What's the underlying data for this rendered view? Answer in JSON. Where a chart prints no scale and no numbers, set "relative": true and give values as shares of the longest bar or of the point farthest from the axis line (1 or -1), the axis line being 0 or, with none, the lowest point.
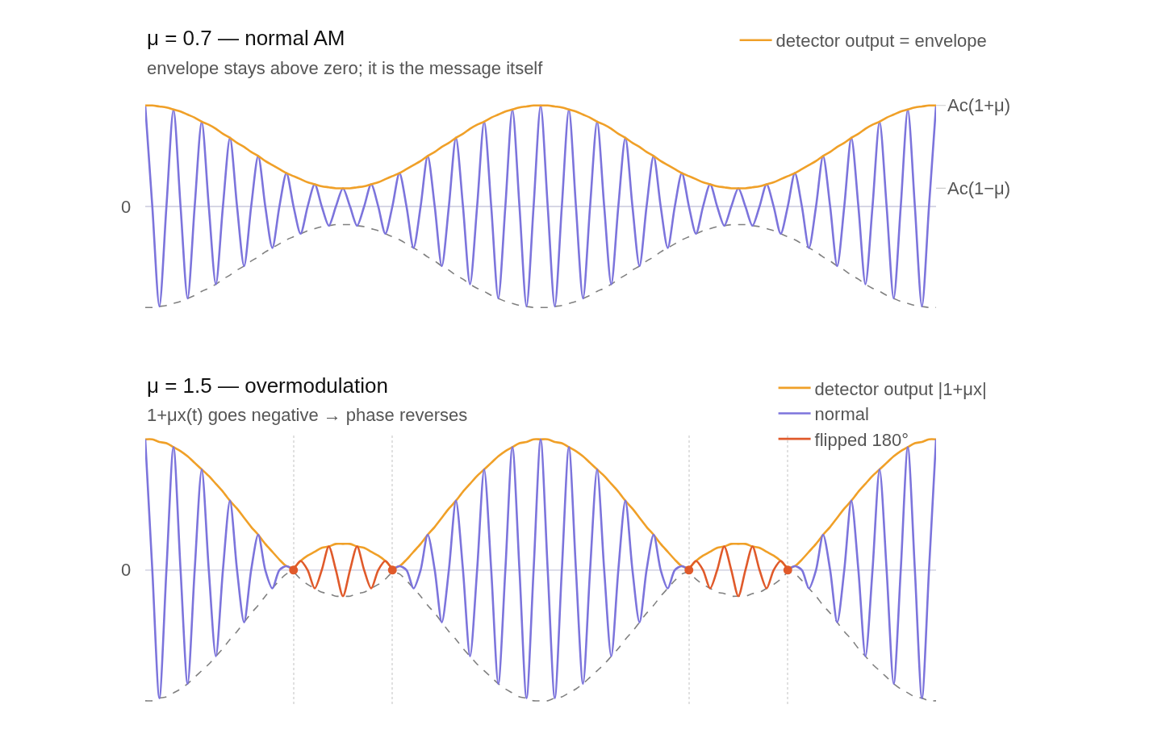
{
  "chart_data": [
    {
      "type": "line",
      "title": "μ = 0.7 — normal AM",
      "subtitle": "envelope stays above zero; it is the message itself",
      "relative": true,
      "legend": "top right",
      "categories": [
        null,
        null,
        null,
        null,
        null,
        null,
        null,
        null,
        null,
        null,
        null,
        null,
        null,
        null,
        null,
        null,
        null,
        null,
        null,
        null,
        null,
        null,
        null,
        null,
        null,
        null,
        null,
        null,
        null,
        null,
        null,
        null,
        null,
        null,
        null,
        null,
        null,
        null,
        null,
        null,
        null,
        null,
        null,
        null,
        null,
        null,
        null,
        null,
        null,
        null,
        null,
        null,
        null,
        null,
        null,
        null,
        null,
        null,
        null,
        null,
        null,
        null,
        null,
        null,
        null,
        null,
        null,
        null,
        null,
        null,
        null,
        null,
        null,
        null,
        null,
        null,
        null,
        null,
        null,
        null,
        null,
        null,
        null,
        null,
        null,
        null,
        null,
        null,
        null,
        null,
        null,
        null,
        null,
        null,
        null,
        null,
        null,
        null,
        null,
        null,
        null,
        null,
        null,
        null,
        null,
        null,
        null,
        null,
        null,
        null,
        null,
        null,
        null
      ],
      "series": [
        {
          "color": "#808080",
          "line_style": "dashed",
          "values": [
            -1,
            -1,
            -0.99,
            -0.98,
            -0.96,
            -0.94,
            -0.91,
            -0.88,
            -0.84,
            -0.81,
            -0.77,
            -0.72,
            -0.68,
            -0.63,
            -0.59,
            -0.54,
            -0.5,
            -0.45,
            -0.41,
            -0.37,
            -0.33,
            -0.3,
            -0.27,
            -0.24,
            -0.22,
            -0.2,
            -0.19,
            -0.18,
            -0.18,
            -0.18,
            -0.19,
            -0.2,
            -0.22,
            -0.24,
            -0.27,
            -0.3,
            -0.33,
            -0.37,
            -0.41,
            -0.45,
            -0.5,
            -0.54,
            -0.59,
            -0.63,
            -0.68,
            -0.72,
            -0.77,
            -0.81,
            -0.84,
            -0.88,
            -0.91,
            -0.94,
            -0.96,
            -0.98,
            -0.99,
            -1,
            -1,
            -1,
            -0.99,
            -0.98,
            -0.96,
            -0.94,
            -0.91,
            -0.88,
            -0.84,
            -0.81,
            -0.77,
            -0.72,
            -0.68,
            -0.63,
            -0.59,
            -0.54,
            -0.5,
            -0.45,
            -0.41,
            -0.37,
            -0.33,
            -0.3,
            -0.27,
            -0.24,
            -0.22,
            -0.2,
            -0.19,
            -0.18,
            -0.18,
            -0.18,
            -0.19,
            -0.2,
            -0.22,
            -0.24,
            -0.27,
            -0.3,
            -0.33,
            -0.37,
            -0.41,
            -0.45,
            -0.5,
            -0.54,
            -0.59,
            -0.63,
            -0.68,
            -0.72,
            -0.77,
            -0.81,
            -0.84,
            -0.88,
            -0.91,
            -0.94,
            -0.96,
            -0.98,
            -0.99,
            -1,
            -1
          ]
        },
        {
          "color": "#7c74dc",
          "values": [
            1,
            0,
            -0.99,
            0,
            0.96,
            0,
            -0.91,
            0,
            0.84,
            0,
            -0.77,
            0,
            0.68,
            0,
            -0.59,
            0,
            0.5,
            0,
            -0.41,
            0,
            0.33,
            0,
            -0.27,
            0,
            0.22,
            0,
            -0.19,
            0,
            0.18,
            0,
            -0.19,
            0,
            0.22,
            0,
            -0.27,
            0,
            0.33,
            0,
            -0.41,
            0,
            0.5,
            0,
            -0.59,
            0,
            0.68,
            0,
            -0.77,
            0,
            0.84,
            0,
            -0.91,
            0,
            0.96,
            0,
            -0.99,
            0,
            1,
            0,
            -0.99,
            0,
            0.96,
            0,
            -0.91,
            0,
            0.84,
            0,
            -0.77,
            0,
            0.68,
            0,
            -0.59,
            0,
            0.5,
            0,
            -0.41,
            0,
            0.33,
            0,
            -0.27,
            0,
            0.22,
            0,
            -0.19,
            0,
            0.18,
            0,
            -0.19,
            0,
            0.22,
            0,
            -0.27,
            0,
            0.33,
            0,
            -0.41,
            0,
            0.5,
            0,
            -0.59,
            0,
            0.68,
            0,
            -0.77,
            0,
            0.84,
            0,
            -0.91,
            0,
            0.96,
            0,
            -0.99,
            0,
            1
          ]
        },
        {
          "name": "detector output = envelope",
          "color": "#f0a028",
          "values": [
            1,
            1,
            0.99,
            0.98,
            0.96,
            0.94,
            0.91,
            0.88,
            0.84,
            0.81,
            0.77,
            0.72,
            0.68,
            0.63,
            0.59,
            0.54,
            0.5,
            0.45,
            0.41,
            0.37,
            0.33,
            0.3,
            0.27,
            0.24,
            0.22,
            0.2,
            0.19,
            0.18,
            0.18,
            0.18,
            0.19,
            0.2,
            0.22,
            0.24,
            0.27,
            0.3,
            0.33,
            0.37,
            0.41,
            0.45,
            0.5,
            0.54,
            0.59,
            0.63,
            0.68,
            0.72,
            0.77,
            0.81,
            0.84,
            0.88,
            0.91,
            0.94,
            0.96,
            0.98,
            0.99,
            1,
            1,
            1,
            0.99,
            0.98,
            0.96,
            0.94,
            0.91,
            0.88,
            0.84,
            0.81,
            0.77,
            0.72,
            0.68,
            0.63,
            0.59,
            0.54,
            0.5,
            0.45,
            0.41,
            0.37,
            0.33,
            0.3,
            0.27,
            0.24,
            0.22,
            0.2,
            0.19,
            0.18,
            0.18,
            0.18,
            0.19,
            0.2,
            0.22,
            0.24,
            0.27,
            0.3,
            0.33,
            0.37,
            0.41,
            0.45,
            0.5,
            0.54,
            0.59,
            0.63,
            0.68,
            0.72,
            0.77,
            0.81,
            0.84,
            0.88,
            0.91,
            0.94,
            0.96,
            0.98,
            0.99,
            1,
            1
          ]
        }
      ],
      "ref_lines": [
        {
          "axis": "y",
          "value": 0,
          "label": "0",
          "color": "#c8c8dc"
        }
      ],
      "annotations": [
        "Ac(1+μ)",
        "Ac(1−μ)"
      ]
    },
    {
      "type": "line",
      "title": "μ = 1.5 — overmodulation",
      "subtitle": "1+μx(t) goes negative → phase reverses",
      "relative": true,
      "grid": "x",
      "legend": "top right",
      "categories": [
        null,
        null,
        null,
        null,
        null,
        null,
        null,
        null,
        null,
        null,
        null,
        null,
        null,
        null,
        null,
        null,
        null,
        null,
        null,
        null,
        null,
        null,
        null,
        null,
        null,
        null,
        null,
        null,
        null,
        null,
        null,
        null,
        null,
        null,
        null,
        null,
        null,
        null,
        null,
        null,
        null,
        null,
        null,
        null,
        null,
        null,
        null,
        null,
        null,
        null,
        null,
        null,
        null,
        null,
        null,
        null,
        null,
        null,
        null,
        null,
        null,
        null,
        null,
        null,
        null,
        null,
        null,
        null,
        null,
        null,
        null,
        null,
        null,
        null,
        null,
        null,
        null,
        null,
        null,
        null,
        null,
        null,
        null,
        null,
        null,
        null,
        null,
        null,
        null,
        null,
        null,
        null,
        null,
        null,
        null,
        null,
        null,
        null,
        null,
        null,
        null,
        null,
        null,
        null,
        null,
        null,
        null,
        null,
        null,
        null,
        null,
        null,
        null
      ],
      "series": [
        {
          "color": "#808080",
          "line_style": "dashed",
          "values": [
            -1,
            -1,
            -0.98,
            -0.97,
            -0.94,
            -0.91,
            -0.87,
            -0.82,
            -0.77,
            -0.72,
            -0.66,
            -0.6,
            -0.53,
            -0.47,
            -0.4,
            -0.33,
            -0.27,
            -0.2,
            -0.14,
            -0.08,
            -0.03,
            -0.02,
            -0.07,
            -0.11,
            -0.14,
            -0.17,
            -0.18,
            -0.2,
            -0.2,
            -0.2,
            -0.18,
            -0.17,
            -0.14,
            -0.11,
            -0.07,
            -0.02,
            -0.03,
            -0.08,
            -0.14,
            -0.2,
            -0.27,
            -0.33,
            -0.4,
            -0.47,
            -0.53,
            -0.6,
            -0.66,
            -0.72,
            -0.77,
            -0.82,
            -0.87,
            -0.91,
            -0.94,
            -0.97,
            -0.98,
            -1,
            -1,
            -1,
            -0.98,
            -0.97,
            -0.94,
            -0.91,
            -0.87,
            -0.82,
            -0.77,
            -0.72,
            -0.66,
            -0.6,
            -0.53,
            -0.47,
            -0.4,
            -0.33,
            -0.27,
            -0.2,
            -0.14,
            -0.08,
            -0.03,
            -0.02,
            -0.07,
            -0.11,
            -0.14,
            -0.17,
            -0.18,
            -0.2,
            -0.2,
            -0.2,
            -0.18,
            -0.17,
            -0.14,
            -0.11,
            -0.07,
            -0.02,
            -0.03,
            -0.08,
            -0.14,
            -0.2,
            -0.27,
            -0.33,
            -0.4,
            -0.47,
            -0.53,
            -0.6,
            -0.66,
            -0.72,
            -0.77,
            -0.82,
            -0.87,
            -0.91,
            -0.94,
            -0.97,
            -0.98,
            -1,
            -1
          ]
        },
        {
          "name": "detector output |1+μx|",
          "color": "#f0a028",
          "values": [
            1,
            1,
            0.98,
            0.97,
            0.94,
            0.91,
            0.87,
            0.82,
            0.77,
            0.72,
            0.66,
            0.6,
            0.53,
            0.47,
            0.4,
            0.33,
            0.27,
            0.2,
            0.14,
            0.08,
            0.03,
            0.02,
            0.07,
            0.11,
            0.14,
            0.17,
            0.18,
            0.2,
            0.2,
            0.2,
            0.18,
            0.17,
            0.14,
            0.11,
            0.07,
            0.02,
            0.03,
            0.08,
            0.14,
            0.2,
            0.27,
            0.33,
            0.4,
            0.47,
            0.53,
            0.6,
            0.66,
            0.72,
            0.77,
            0.82,
            0.87,
            0.91,
            0.94,
            0.97,
            0.98,
            1,
            1,
            1,
            0.98,
            0.97,
            0.94,
            0.91,
            0.87,
            0.82,
            0.77,
            0.72,
            0.66,
            0.6,
            0.53,
            0.47,
            0.4,
            0.33,
            0.27,
            0.2,
            0.14,
            0.08,
            0.03,
            0.02,
            0.07,
            0.11,
            0.14,
            0.17,
            0.18,
            0.2,
            0.2,
            0.2,
            0.18,
            0.17,
            0.14,
            0.11,
            0.07,
            0.02,
            0.03,
            0.08,
            0.14,
            0.2,
            0.27,
            0.33,
            0.4,
            0.47,
            0.53,
            0.6,
            0.66,
            0.72,
            0.77,
            0.82,
            0.87,
            0.91,
            0.94,
            0.97,
            0.98,
            1,
            1
          ]
        },
        {
          "name": "normal",
          "color": "#7c74dc",
          "values": [
            1,
            0,
            -0.98,
            0,
            0.94,
            0,
            -0.87,
            0,
            0.77,
            0,
            -0.66,
            0,
            0.53,
            0,
            -0.4,
            0,
            0.27,
            0,
            -0.14,
            0,
            0.03,
            0,
            null,
            null,
            null,
            null,
            null,
            null,
            null,
            null,
            null,
            null,
            null,
            null,
            null,
            0,
            0.03,
            0,
            -0.14,
            0,
            0.27,
            0,
            -0.4,
            0,
            0.53,
            0,
            -0.66,
            0,
            0.77,
            0,
            -0.87,
            0,
            0.94,
            0,
            -0.98,
            0,
            1,
            0,
            -0.98,
            0,
            0.94,
            0,
            -0.87,
            0,
            0.77,
            0,
            -0.66,
            0,
            0.53,
            0,
            -0.4,
            0,
            0.27,
            0,
            -0.14,
            0,
            0.03,
            0,
            null,
            null,
            null,
            null,
            null,
            null,
            null,
            null,
            null,
            null,
            null,
            null,
            null,
            0,
            0.03,
            0,
            -0.14,
            0,
            0.27,
            0,
            -0.4,
            0,
            0.53,
            0,
            -0.66,
            0,
            0.77,
            0,
            -0.87,
            0,
            0.94,
            0,
            -0.98,
            0,
            1
          ]
        },
        {
          "name": "flipped 180°",
          "color": "#e05a2b",
          "values": [
            null,
            null,
            null,
            null,
            null,
            null,
            null,
            null,
            null,
            null,
            null,
            null,
            null,
            null,
            null,
            null,
            null,
            null,
            null,
            null,
            null,
            0,
            0.07,
            0,
            -0.14,
            0,
            0.18,
            0,
            -0.2,
            0,
            0.18,
            0,
            -0.14,
            0,
            0.07,
            0,
            null,
            null,
            null,
            null,
            null,
            null,
            null,
            null,
            null,
            null,
            null,
            null,
            null,
            null,
            null,
            null,
            null,
            null,
            null,
            null,
            null,
            null,
            null,
            null,
            null,
            null,
            null,
            null,
            null,
            null,
            null,
            null,
            null,
            null,
            null,
            null,
            null,
            null,
            null,
            null,
            null,
            0,
            0.07,
            0,
            -0.14,
            0,
            0.18,
            0,
            -0.2,
            0,
            0.18,
            0,
            -0.14,
            0,
            0.07,
            0,
            null,
            null,
            null,
            null,
            null,
            null,
            null,
            null,
            null,
            null,
            null,
            null,
            null,
            null,
            null,
            null,
            null,
            null,
            null,
            null,
            null
          ]
        },
        {
          "type": "scatter",
          "marker": "circle",
          "color": "#e05a2b",
          "values": [
            null,
            null,
            null,
            null,
            null,
            null,
            null,
            null,
            null,
            null,
            null,
            null,
            null,
            null,
            null,
            null,
            null,
            null,
            null,
            null,
            null,
            0,
            null,
            null,
            null,
            null,
            null,
            null,
            null,
            null,
            null,
            null,
            null,
            null,
            null,
            0,
            null,
            null,
            null,
            null,
            null,
            null,
            null,
            null,
            null,
            null,
            null,
            null,
            null,
            null,
            null,
            null,
            null,
            null,
            null,
            null,
            null,
            null,
            null,
            null,
            null,
            null,
            null,
            null,
            null,
            null,
            null,
            null,
            null,
            null,
            null,
            null,
            null,
            null,
            null,
            null,
            null,
            0,
            null,
            null,
            null,
            null,
            null,
            null,
            null,
            null,
            null,
            null,
            null,
            null,
            null,
            0,
            null,
            null,
            null,
            null,
            null,
            null,
            null,
            null,
            null,
            null,
            null,
            null,
            null,
            null,
            null,
            null,
            null,
            null,
            null,
            null,
            null
          ]
        }
      ],
      "ref_lines": [
        {
          "axis": "y",
          "value": 0,
          "label": "0",
          "color": "#c8c8dc"
        }
      ]
    }
  ]
}
